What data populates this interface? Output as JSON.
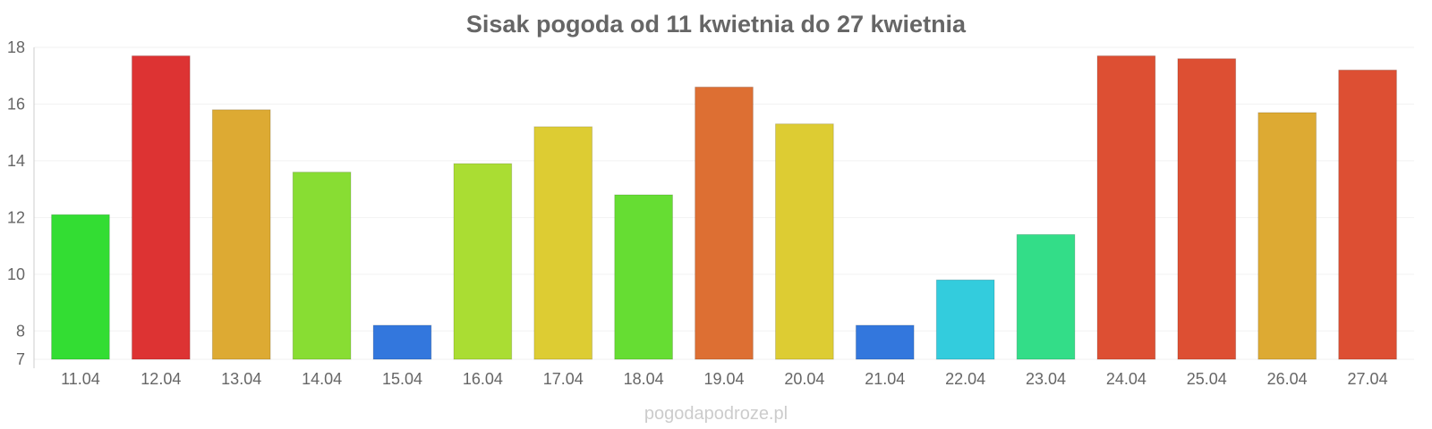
{
  "chart_data": {
    "type": "bar",
    "title": "Sisak pogoda od 11 kwietnia do 27 kwietnia",
    "categories": [
      "11.04",
      "12.04",
      "13.04",
      "14.04",
      "15.04",
      "16.04",
      "17.04",
      "18.04",
      "19.04",
      "20.04",
      "21.04",
      "22.04",
      "23.04",
      "24.04",
      "25.04",
      "26.04",
      "27.04"
    ],
    "values": [
      12.1,
      17.7,
      15.8,
      13.6,
      8.2,
      13.9,
      15.2,
      12.8,
      16.6,
      15.3,
      8.2,
      9.8,
      11.4,
      17.7,
      17.6,
      15.7,
      17.2
    ],
    "colors": [
      "#33dd33",
      "#dd3333",
      "#ddaa33",
      "#88dd33",
      "#3377dd",
      "#aadd33",
      "#ddcc33",
      "#66dd33",
      "#dd6f33",
      "#ddcc33",
      "#3377dd",
      "#33ccdd",
      "#33dd88",
      "#dd4f33",
      "#dd4f33",
      "#ddaa33",
      "#dd4f33"
    ],
    "yticks": [
      7,
      8,
      10,
      12,
      14,
      16,
      18
    ],
    "ylim": [
      7,
      18
    ],
    "grid": true,
    "xlabel": "",
    "ylabel": ""
  },
  "source": "pogodapodroze.pl"
}
